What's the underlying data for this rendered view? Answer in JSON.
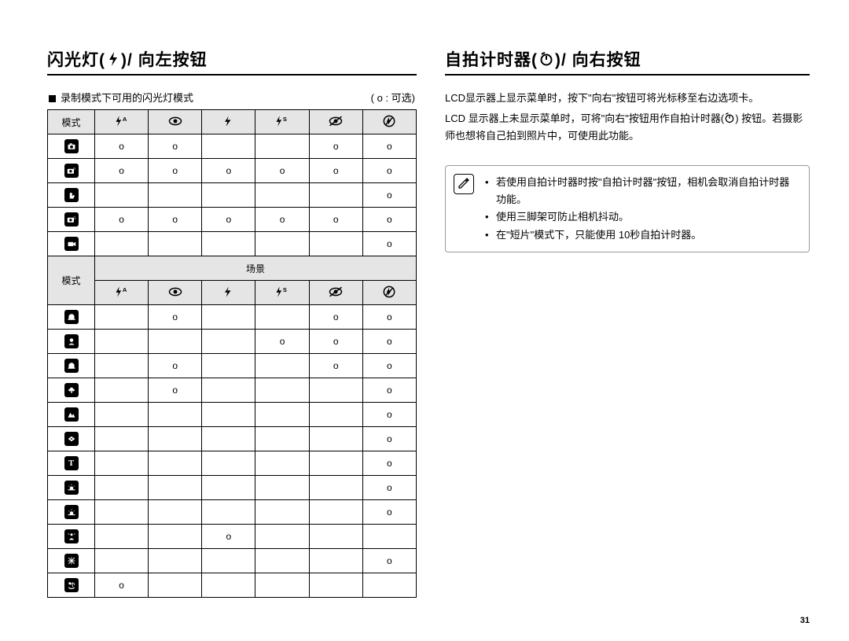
{
  "left": {
    "heading_parts": [
      "闪光灯(",
      ")/  向左按钮"
    ],
    "subhead_left": "录制模式下可用的闪光灯模式",
    "subhead_right": "( o : 可选)",
    "table1": {
      "mode_label": "模式",
      "col_icons": [
        "flash-auto",
        "eye",
        "flash",
        "flash-s",
        "eye-slash",
        "flash-off"
      ],
      "rows": [
        {
          "icon": "camera",
          "cells": [
            "o",
            "o",
            "",
            "",
            "o",
            "o"
          ]
        },
        {
          "icon": "camera-p",
          "cells": [
            "o",
            "o",
            "o",
            "o",
            "o",
            "o"
          ]
        },
        {
          "icon": "hand",
          "cells": [
            "",
            "",
            "",
            "",
            "",
            "o"
          ]
        },
        {
          "icon": "camera-g",
          "cells": [
            "o",
            "o",
            "o",
            "o",
            "o",
            "o"
          ]
        },
        {
          "icon": "movie",
          "cells": [
            "",
            "",
            "",
            "",
            "",
            "o"
          ]
        }
      ],
      "scene_label": "场景",
      "scene_mode_label": "模式",
      "scene_rows": [
        {
          "icon": "night",
          "cells": [
            "",
            "o",
            "",
            "",
            "o",
            "o"
          ]
        },
        {
          "icon": "portrait",
          "cells": [
            "",
            "",
            "",
            "o",
            "o",
            "o"
          ]
        },
        {
          "icon": "children",
          "cells": [
            "",
            "o",
            "",
            "",
            "o",
            "o"
          ]
        },
        {
          "icon": "landscape",
          "cells": [
            "",
            "o",
            "",
            "",
            "",
            "o"
          ]
        },
        {
          "icon": "mountain",
          "cells": [
            "",
            "",
            "",
            "",
            "",
            "o"
          ]
        },
        {
          "icon": "flower",
          "cells": [
            "",
            "",
            "",
            "",
            "",
            "o"
          ]
        },
        {
          "icon": "text",
          "cells": [
            "",
            "",
            "",
            "",
            "",
            "o"
          ]
        },
        {
          "icon": "sunset",
          "cells": [
            "",
            "",
            "",
            "",
            "",
            "o"
          ]
        },
        {
          "icon": "dawn",
          "cells": [
            "",
            "",
            "",
            "",
            "",
            "o"
          ]
        },
        {
          "icon": "backlight",
          "cells": [
            "",
            "",
            "o",
            "",
            "",
            ""
          ]
        },
        {
          "icon": "firework",
          "cells": [
            "",
            "",
            "",
            "",
            "",
            "o"
          ]
        },
        {
          "icon": "beach",
          "cells": [
            "o",
            "",
            "",
            "",
            "",
            ""
          ]
        }
      ]
    }
  },
  "right": {
    "heading_parts": [
      "自拍计时器(",
      ")/  向右按钮"
    ],
    "para1": "LCD显示器上显示菜单时，按下\"向右\"按钮可将光标移至右边选项卡。",
    "para2_before": "LCD 显示器上未显示菜单时，可将\"向右\"按钮用作自拍计时器(",
    "para2_after": ") 按钮。若摄影师也想将自己拍到照片中，可使用此功能。",
    "notes": [
      "若使用自拍计时器时按\"自拍计时器\"按钮，相机会取消自拍计时器功能。",
      "使用三脚架可防止相机抖动。",
      "在\"短片\"模式下，只能使用 10秒自拍计时器。"
    ]
  },
  "page_number": "31"
}
